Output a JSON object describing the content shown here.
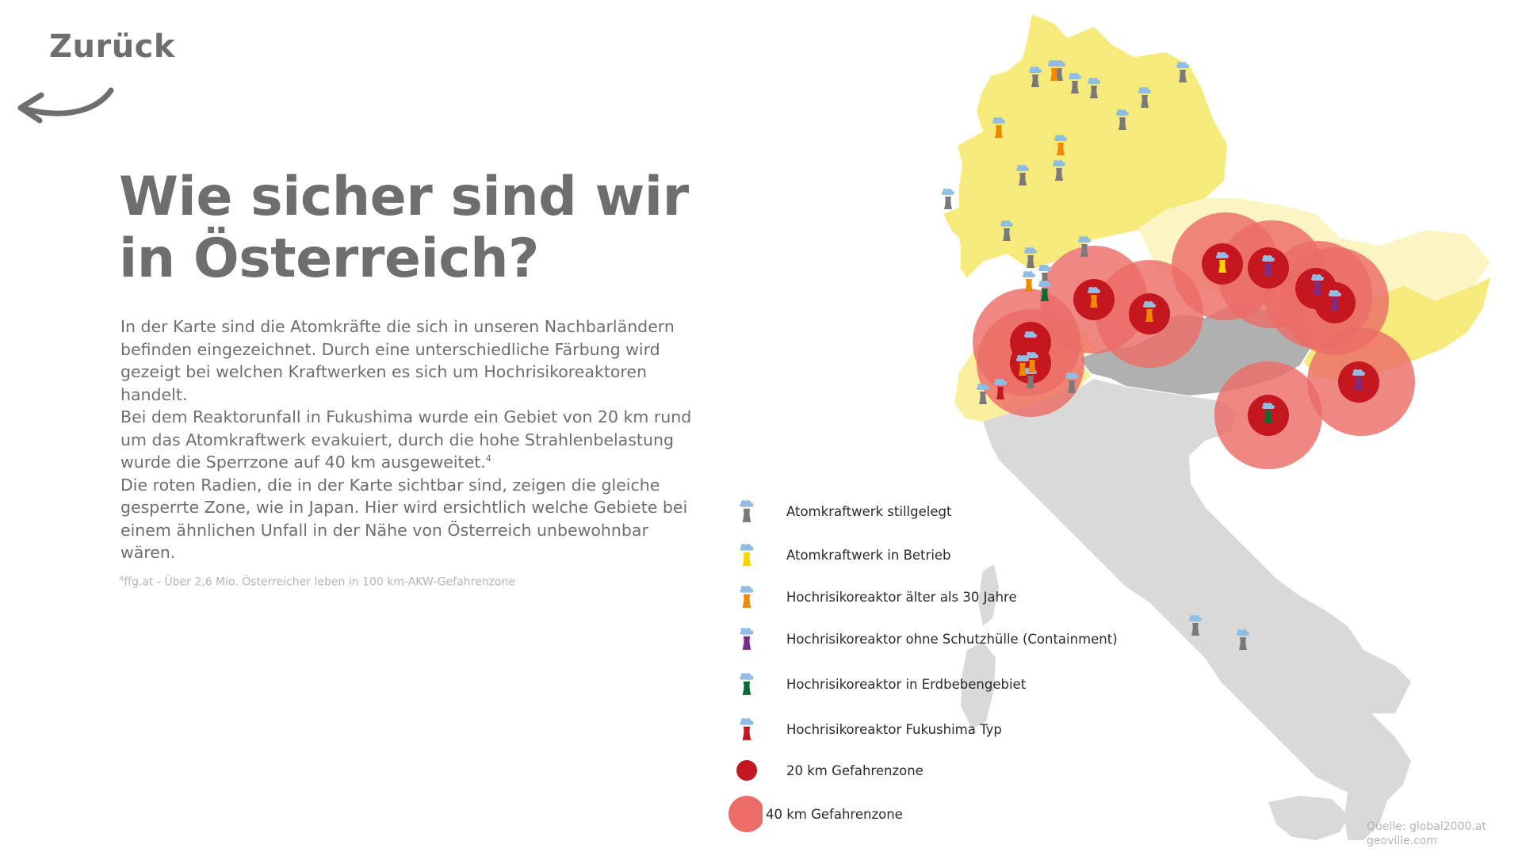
{
  "nav": {
    "back_label": "Zurück"
  },
  "heading": {
    "line1": "Wie sicher sind wir",
    "line2": "in Österreich?"
  },
  "body": {
    "p1": "In der Karte sind die Atomkräfte die sich in unseren Nachbarländern befinden eingezeichnet. Durch eine unterschiedliche Färbung wird gezeigt bei welchen Kraftwerken es sich um Hochrisikoreaktoren handelt.",
    "p2": "Bei dem Reaktorunfall in Fukushima wurde ein Gebiet von 20 km rund um das Atomkraftwerk evakuiert, durch die hohe Strahlenbelastung wurde die Sperrzone auf 40 km ausgeweitet.",
    "p2_footnote_mark": "4",
    "p3": "Die roten Radien, die in der Karte sichtbar sind, zeigen die gleiche gesperrte Zone, wie in Japan. Hier wird ersichtlich welche Gebiete bei einem ähnlichen Unfall in der Nähe von Österreich unbewohnbar wären."
  },
  "footnote": {
    "mark": "4",
    "text": "ffg.at - Über 2,6 Mio. Österreicher leben in 100 km-AKW-Gefahrenzone"
  },
  "legend": [
    {
      "label": "Atomkraftwerk stillgelegt",
      "icon": "reactor-icon",
      "color": "#7a7a7a"
    },
    {
      "label": "Atomkraftwerk in Betrieb",
      "icon": "reactor-icon",
      "color": "#f5d500"
    },
    {
      "label": "Hochrisikoreaktor älter als 30 Jahre",
      "icon": "reactor-icon",
      "color": "#ef8a00"
    },
    {
      "label": "Hochrisikoreaktor ohne Schutzhülle (Containment)",
      "icon": "reactor-icon",
      "color": "#7b2d8b"
    },
    {
      "label": "Hochrisikoreaktor in Erdbebengebiet",
      "icon": "reactor-icon",
      "color": "#0a6a33"
    },
    {
      "label": "Hochrisikoreaktor Fukushima Typ",
      "icon": "reactor-icon",
      "color": "#c4171f"
    },
    {
      "label": "20 km Gefahrenzone",
      "icon": "danger-zone-20km",
      "color": "#c4171f"
    },
    {
      "label": "40 km Gefahrenzone",
      "icon": "danger-zone-40km",
      "color": "#ec6d68"
    }
  ],
  "source": {
    "line1": "Quelle: global2000.at",
    "line2": "geoville.com"
  },
  "map": {
    "country_colors": {
      "neighbours": "#f6ea7a",
      "neighbours_light": "#fbf5c4",
      "austria": "#b0b0b0",
      "italy": "#d9d9d9"
    },
    "cloud_color": "#8fbde3"
  }
}
